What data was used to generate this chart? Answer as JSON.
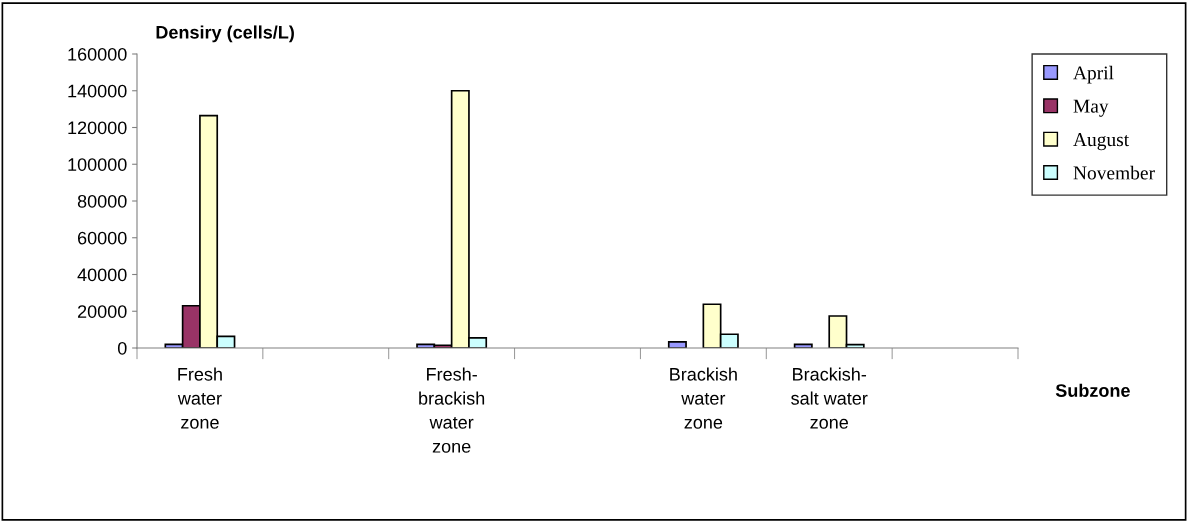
{
  "chart_data": {
    "type": "bar",
    "ylabel": "Densiry (cells/L)",
    "xlabel": "Subzone",
    "categories": [
      "Fresh\nwater\nzone",
      null,
      "Fresh-\nbrackish\nwater\nzone",
      null,
      "Brackish\nwater\nzone",
      "Brackish-\nsalt water\nzone",
      null
    ],
    "series": [
      {
        "name": "April",
        "color": "#9999ff",
        "values": [
          2000,
          null,
          2000,
          null,
          3300,
          2000,
          null
        ]
      },
      {
        "name": "May",
        "color": "#993366",
        "values": [
          23000,
          null,
          1500,
          null,
          null,
          null,
          null
        ]
      },
      {
        "name": "August",
        "color": "#ffffcc",
        "values": [
          126500,
          null,
          140000,
          null,
          23800,
          17400,
          null
        ]
      },
      {
        "name": "November",
        "color": "#ccffff",
        "values": [
          6300,
          null,
          5500,
          null,
          7500,
          1800,
          null
        ]
      }
    ],
    "ylim": [
      0,
      160000
    ],
    "yticks": [
      0,
      20000,
      40000,
      60000,
      80000,
      100000,
      120000,
      140000,
      160000
    ],
    "grid": false,
    "legend": "right"
  }
}
